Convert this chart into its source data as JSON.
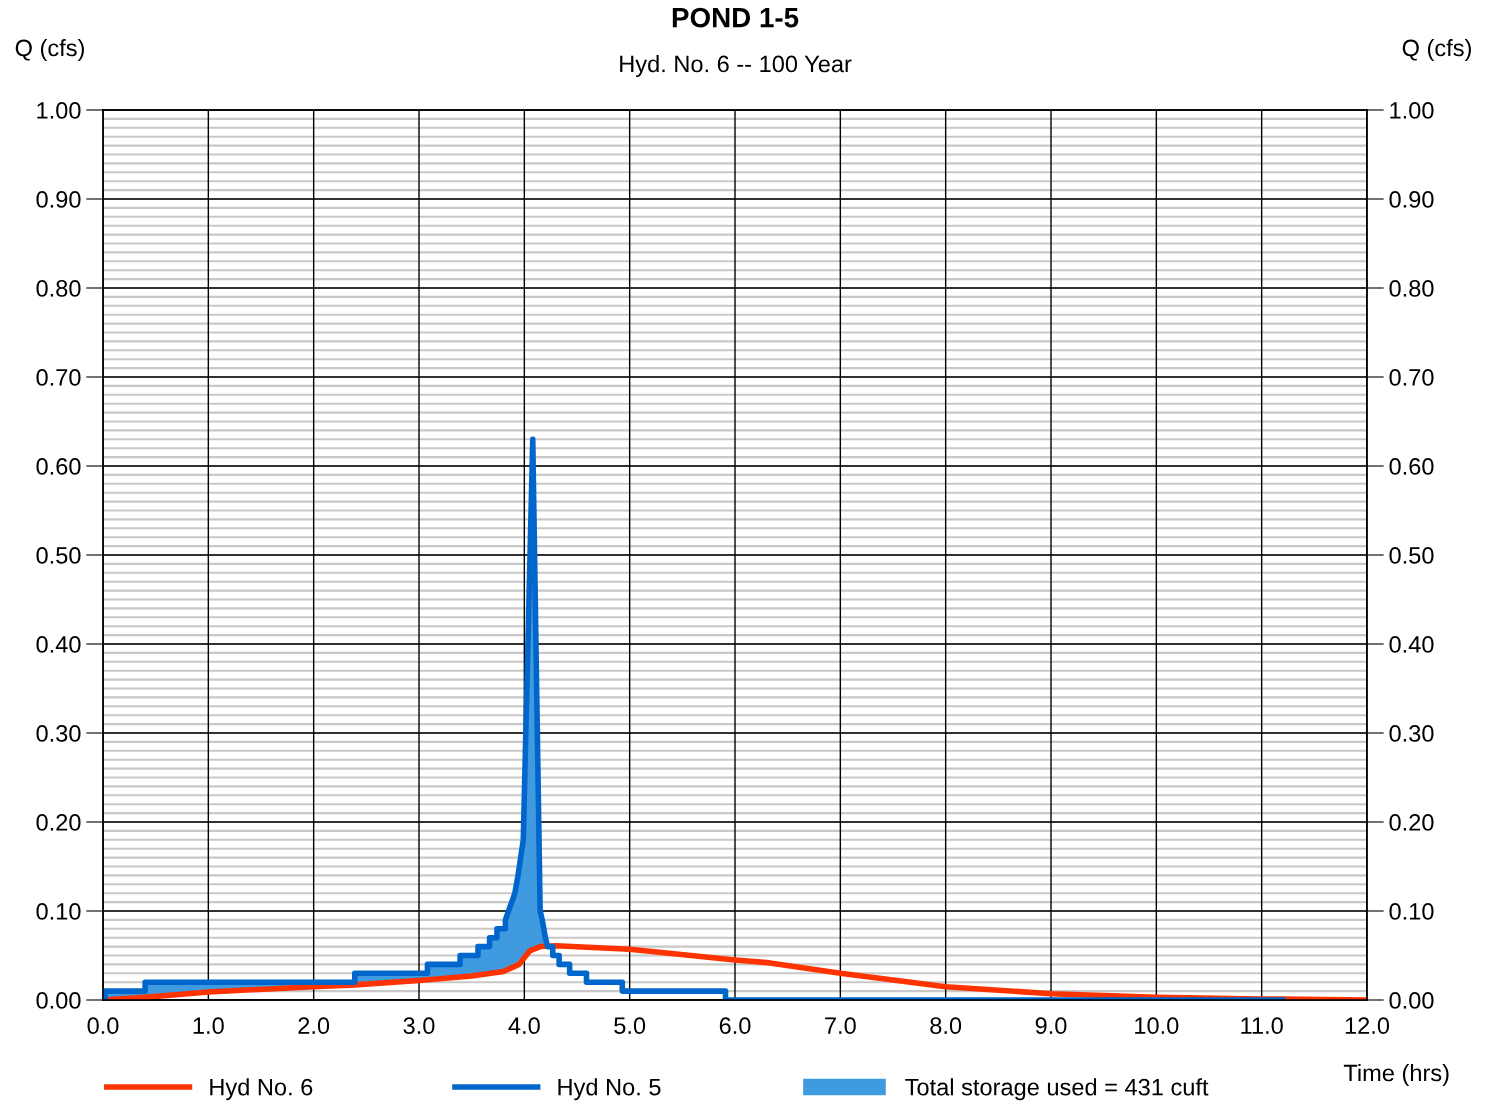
{
  "chart_data": {
    "type": "line",
    "title": "POND 1-5",
    "subtitle": "Hyd. No. 6 -- 100 Year",
    "xlabel": "Time (hrs)",
    "ylabel": "Q (cfs)",
    "y2label": "Q (cfs)",
    "xlim": [
      0,
      12
    ],
    "xticks": [
      {
        "value": 0,
        "label": "0.0"
      },
      {
        "value": 1,
        "label": "1.0"
      },
      {
        "value": 2,
        "label": "2.0"
      },
      {
        "value": 3,
        "label": "3.0"
      },
      {
        "value": 4,
        "label": "4.0"
      },
      {
        "value": 5,
        "label": "5.0"
      },
      {
        "value": 6,
        "label": "6.0"
      },
      {
        "value": 7,
        "label": "7.0"
      },
      {
        "value": 8,
        "label": "8.0"
      },
      {
        "value": 9,
        "label": "9.0"
      },
      {
        "value": 10,
        "label": "10.0"
      },
      {
        "value": 11,
        "label": "11.0"
      },
      {
        "value": 12,
        "label": "12.0"
      }
    ],
    "ylim": [
      0,
      1
    ],
    "yticks": [
      {
        "value": 0,
        "label": "0.00"
      },
      {
        "value": 0.1,
        "label": "0.10"
      },
      {
        "value": 0.2,
        "label": "0.20"
      },
      {
        "value": 0.3,
        "label": "0.30"
      },
      {
        "value": 0.4,
        "label": "0.40"
      },
      {
        "value": 0.5,
        "label": "0.50"
      },
      {
        "value": 0.6,
        "label": "0.60"
      },
      {
        "value": 0.7,
        "label": "0.70"
      },
      {
        "value": 0.8,
        "label": "0.80"
      },
      {
        "value": 0.9,
        "label": "0.90"
      },
      {
        "value": 1,
        "label": "1.00"
      }
    ],
    "y2lim": [
      0,
      1
    ],
    "y2ticks": [
      {
        "value": 0,
        "label": "0.00"
      },
      {
        "value": 0.1,
        "label": "0.10"
      },
      {
        "value": 0.2,
        "label": "0.20"
      },
      {
        "value": 0.3,
        "label": "0.30"
      },
      {
        "value": 0.4,
        "label": "0.40"
      },
      {
        "value": 0.5,
        "label": "0.50"
      },
      {
        "value": 0.6,
        "label": "0.60"
      },
      {
        "value": 0.7,
        "label": "0.70"
      },
      {
        "value": 0.8,
        "label": "0.80"
      },
      {
        "value": 0.9,
        "label": "0.90"
      },
      {
        "value": 1,
        "label": "1.00"
      }
    ],
    "grid": true,
    "legend": "bottom",
    "marker": "none",
    "line_style": "solid",
    "series": [
      {
        "name": "Hyd No. 6",
        "color": "#ff3300",
        "x": [
          0,
          0.4,
          1.0,
          2.0,
          2.39,
          3.0,
          3.5,
          3.8,
          3.95,
          4.05,
          4.15,
          4.3,
          5.0,
          6.0,
          6.3,
          7.0,
          8.0,
          9.0,
          10.0,
          11.0,
          11.2,
          12.0
        ],
        "values": [
          0,
          0.003,
          0.009,
          0.015,
          0.017,
          0.022,
          0.027,
          0.032,
          0.04,
          0.055,
          0.06,
          0.061,
          0.057,
          0.045,
          0.042,
          0.03,
          0.015,
          0.007,
          0.003,
          0.001,
          0.001,
          0
        ]
      },
      {
        "name": "Hyd No. 5",
        "color": "#0066cc",
        "x": [
          0,
          0.02,
          0.02,
          0.4,
          0.4,
          2.39,
          2.39,
          3.08,
          3.08,
          3.39,
          3.39,
          3.56,
          3.56,
          3.67,
          3.67,
          3.74,
          3.74,
          3.82,
          3.82,
          3.91,
          3.94,
          3.99,
          4.08,
          4.15,
          4.17,
          4.2,
          4.22,
          4.27,
          4.27,
          4.33,
          4.33,
          4.43,
          4.43,
          4.59,
          4.59,
          4.93,
          4.93,
          5.91,
          5.91,
          6.1,
          6.1,
          11.2
        ],
        "values": [
          0,
          0,
          0.01,
          0.01,
          0.02,
          0.02,
          0.03,
          0.03,
          0.04,
          0.04,
          0.05,
          0.05,
          0.06,
          0.06,
          0.07,
          0.07,
          0.08,
          0.08,
          0.09,
          0.12,
          0.14,
          0.18,
          0.63,
          0.1,
          0.09,
          0.07,
          0.06,
          0.06,
          0.05,
          0.05,
          0.04,
          0.04,
          0.03,
          0.03,
          0.02,
          0.02,
          0.01,
          0.01,
          0,
          0,
          0,
          0
        ]
      },
      {
        "name": "Total storage used = 431 cuft",
        "type": "area",
        "color": "#3f9ae0",
        "x": [
          0.02,
          0.4,
          0.4,
          2.39,
          2.39,
          3.08,
          3.08,
          3.39,
          3.39,
          3.56,
          3.56,
          3.67,
          3.67,
          3.74,
          3.74,
          3.82,
          3.82,
          3.91,
          3.94,
          3.99,
          4.08,
          4.15,
          4.2
        ],
        "values": [
          0.01,
          0.01,
          0.02,
          0.02,
          0.03,
          0.03,
          0.04,
          0.04,
          0.05,
          0.05,
          0.06,
          0.06,
          0.07,
          0.07,
          0.08,
          0.08,
          0.09,
          0.12,
          0.14,
          0.18,
          0.63,
          0.1,
          0.07
        ]
      }
    ]
  }
}
